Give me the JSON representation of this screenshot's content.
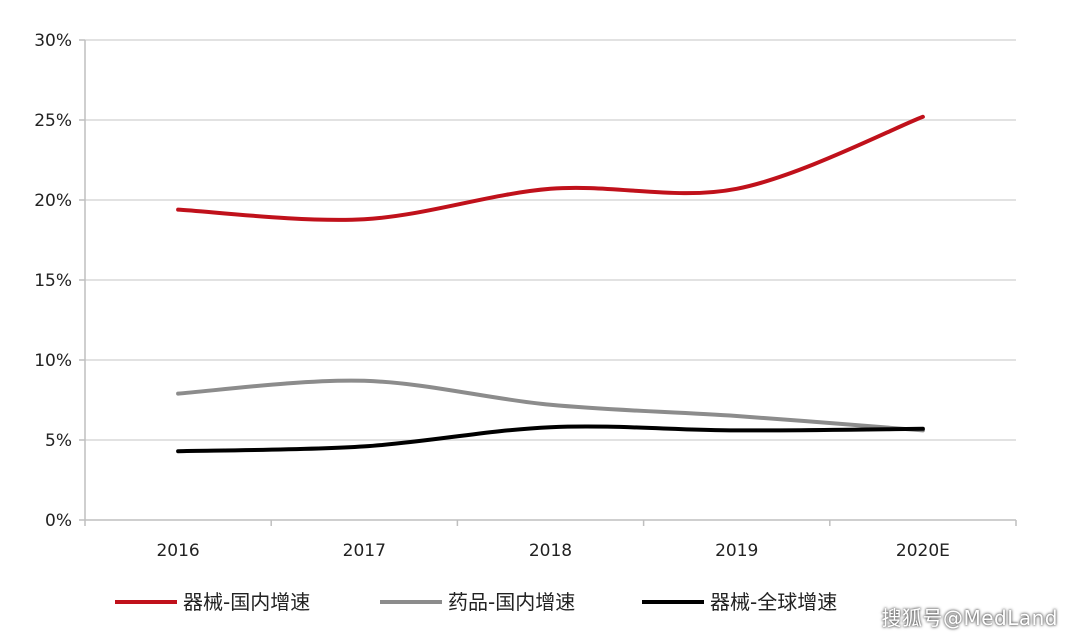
{
  "chart_data": {
    "type": "line",
    "categories": [
      "2016",
      "2017",
      "2018",
      "2019",
      "2020E"
    ],
    "series": [
      {
        "name": "器械-国内增速",
        "color": "#c0111b",
        "values": [
          19.4,
          18.8,
          20.7,
          20.7,
          25.2
        ]
      },
      {
        "name": "药品-国内增速",
        "color": "#8c8c8c",
        "values": [
          7.9,
          8.7,
          7.2,
          6.5,
          5.6
        ]
      },
      {
        "name": "器械-全球增速",
        "color": "#000000",
        "values": [
          4.3,
          4.6,
          5.8,
          5.6,
          5.7
        ]
      }
    ],
    "y_ticks": [
      "0%",
      "5%",
      "10%",
      "15%",
      "20%",
      "25%",
      "30%"
    ],
    "ylim": [
      0,
      30
    ],
    "grid": true,
    "legend_position": "bottom-left",
    "smooth": true
  },
  "watermark": "搜狐号@MedLand"
}
